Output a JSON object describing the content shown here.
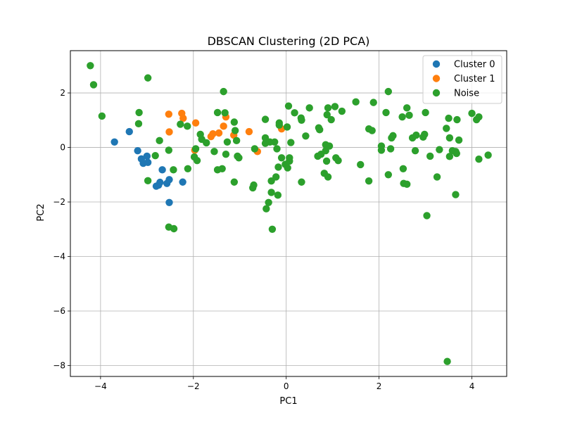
{
  "chart_data": {
    "type": "scatter",
    "title": "DBSCAN Clustering (2D PCA)",
    "xlabel": "PC1",
    "ylabel": "PC2",
    "xlim": [
      -4.65,
      4.75
    ],
    "ylim": [
      -8.4,
      3.55
    ],
    "xticks": [
      -4,
      -2,
      0,
      2,
      4
    ],
    "yticks": [
      -8,
      -6,
      -4,
      -2,
      0,
      2
    ],
    "grid": true,
    "legend_position": "top-right",
    "series": [
      {
        "name": "Cluster 0",
        "color": "#1f77b4",
        "points": [
          [
            -3.7,
            0.2
          ],
          [
            -3.38,
            0.58
          ],
          [
            -3.2,
            -0.12
          ],
          [
            -3.12,
            -0.42
          ],
          [
            -3.08,
            -0.58
          ],
          [
            -3.0,
            -0.32
          ],
          [
            -2.98,
            -0.55
          ],
          [
            -2.8,
            -1.42
          ],
          [
            -2.75,
            -1.38
          ],
          [
            -2.72,
            -1.28
          ],
          [
            -2.67,
            -0.82
          ],
          [
            -2.57,
            -1.32
          ],
          [
            -2.52,
            -1.18
          ],
          [
            -2.52,
            -2.02
          ],
          [
            -2.23,
            -1.27
          ]
        ]
      },
      {
        "name": "Cluster 1",
        "color": "#ff7f0e",
        "points": [
          [
            -2.53,
            1.22
          ],
          [
            -2.52,
            0.57
          ],
          [
            -2.25,
            1.25
          ],
          [
            -2.22,
            1.07
          ],
          [
            -1.95,
            0.9
          ],
          [
            -1.97,
            -0.1
          ],
          [
            -1.62,
            0.4
          ],
          [
            -1.58,
            0.5
          ],
          [
            -1.45,
            0.53
          ],
          [
            -1.35,
            0.78
          ],
          [
            -1.3,
            1.12
          ],
          [
            -1.13,
            0.45
          ],
          [
            -0.8,
            0.58
          ],
          [
            -0.62,
            -0.15
          ],
          [
            -0.1,
            0.68
          ]
        ]
      },
      {
        "name": "Noise",
        "color": "#2ca02c",
        "points": [
          [
            -4.22,
            3.0
          ],
          [
            -4.15,
            2.3
          ],
          [
            -3.97,
            1.15
          ],
          [
            -3.17,
            1.28
          ],
          [
            -3.18,
            0.87
          ],
          [
            -2.98,
            2.55
          ],
          [
            -2.98,
            -1.22
          ],
          [
            -2.82,
            -0.3
          ],
          [
            -2.73,
            0.25
          ],
          [
            -2.53,
            -0.1
          ],
          [
            -2.53,
            -2.92
          ],
          [
            -2.43,
            -0.82
          ],
          [
            -2.42,
            -2.98
          ],
          [
            -2.28,
            0.85
          ],
          [
            -2.13,
            0.78
          ],
          [
            -2.12,
            -0.78
          ],
          [
            -1.98,
            -0.35
          ],
          [
            -1.95,
            -0.05
          ],
          [
            -1.92,
            -0.48
          ],
          [
            -1.85,
            0.48
          ],
          [
            -1.82,
            0.3
          ],
          [
            -1.72,
            0.17
          ],
          [
            -1.55,
            -0.15
          ],
          [
            -1.48,
            1.28
          ],
          [
            -1.48,
            -0.82
          ],
          [
            -1.38,
            -0.78
          ],
          [
            -1.35,
            2.05
          ],
          [
            -1.32,
            1.27
          ],
          [
            -1.3,
            -0.25
          ],
          [
            -1.27,
            0.2
          ],
          [
            -1.12,
            0.93
          ],
          [
            -1.12,
            -1.27
          ],
          [
            -1.1,
            0.62
          ],
          [
            -1.07,
            0.25
          ],
          [
            -1.05,
            -0.32
          ],
          [
            -1.02,
            -0.38
          ],
          [
            -0.72,
            -1.48
          ],
          [
            -0.7,
            -1.38
          ],
          [
            -0.68,
            -0.05
          ],
          [
            -0.45,
            1.03
          ],
          [
            -0.45,
            0.35
          ],
          [
            -0.45,
            0.15
          ],
          [
            -0.43,
            -2.25
          ],
          [
            -0.38,
            -2.02
          ],
          [
            -0.35,
            0.2
          ],
          [
            -0.32,
            -1.65
          ],
          [
            -0.32,
            -1.23
          ],
          [
            -0.3,
            -3.0
          ],
          [
            -0.25,
            0.2
          ],
          [
            -0.22,
            -1.08
          ],
          [
            -0.2,
            -0.05
          ],
          [
            -0.18,
            -1.75
          ],
          [
            -0.17,
            -0.72
          ],
          [
            -0.15,
            0.9
          ],
          [
            -0.15,
            0.82
          ],
          [
            -0.1,
            -0.38
          ],
          [
            -0.02,
            -0.62
          ],
          [
            0.02,
            0.75
          ],
          [
            0.03,
            -0.75
          ],
          [
            0.05,
            1.52
          ],
          [
            0.07,
            -0.5
          ],
          [
            0.07,
            -0.38
          ],
          [
            0.1,
            0.18
          ],
          [
            0.18,
            1.27
          ],
          [
            0.32,
            1.08
          ],
          [
            0.33,
            1.0
          ],
          [
            0.33,
            -1.27
          ],
          [
            0.42,
            0.42
          ],
          [
            0.5,
            1.45
          ],
          [
            0.68,
            -0.32
          ],
          [
            0.7,
            0.72
          ],
          [
            0.72,
            0.65
          ],
          [
            0.75,
            -0.25
          ],
          [
            0.82,
            -0.95
          ],
          [
            0.85,
            0.1
          ],
          [
            0.85,
            -0.12
          ],
          [
            0.87,
            -0.5
          ],
          [
            0.88,
            1.2
          ],
          [
            0.9,
            -1.08
          ],
          [
            0.9,
            1.45
          ],
          [
            0.93,
            0.05
          ],
          [
            0.97,
            1.02
          ],
          [
            1.05,
            1.5
          ],
          [
            1.07,
            -0.38
          ],
          [
            1.12,
            -0.48
          ],
          [
            1.2,
            1.33
          ],
          [
            1.5,
            1.67
          ],
          [
            1.6,
            -0.63
          ],
          [
            1.78,
            0.68
          ],
          [
            1.78,
            -1.23
          ],
          [
            1.85,
            0.62
          ],
          [
            1.88,
            1.65
          ],
          [
            2.05,
            0.05
          ],
          [
            2.05,
            -0.1
          ],
          [
            2.15,
            1.28
          ],
          [
            2.2,
            2.05
          ],
          [
            2.2,
            -1.0
          ],
          [
            2.25,
            -0.05
          ],
          [
            2.27,
            0.35
          ],
          [
            2.3,
            0.43
          ],
          [
            2.5,
            1.12
          ],
          [
            2.52,
            -0.78
          ],
          [
            2.53,
            -1.32
          ],
          [
            2.6,
            1.45
          ],
          [
            2.6,
            -1.35
          ],
          [
            2.65,
            1.18
          ],
          [
            2.72,
            0.35
          ],
          [
            2.78,
            -0.12
          ],
          [
            2.8,
            0.45
          ],
          [
            2.95,
            0.38
          ],
          [
            2.98,
            0.48
          ],
          [
            3.0,
            1.28
          ],
          [
            3.03,
            -2.5
          ],
          [
            3.1,
            -0.32
          ],
          [
            3.25,
            -1.08
          ],
          [
            3.3,
            -0.08
          ],
          [
            3.45,
            0.7
          ],
          [
            3.47,
            -7.85
          ],
          [
            3.5,
            1.07
          ],
          [
            3.52,
            0.35
          ],
          [
            3.52,
            -0.33
          ],
          [
            3.58,
            -0.12
          ],
          [
            3.65,
            -1.73
          ],
          [
            3.65,
            -0.15
          ],
          [
            3.67,
            -0.22
          ],
          [
            3.68,
            1.02
          ],
          [
            3.72,
            0.27
          ],
          [
            4.0,
            1.25
          ],
          [
            4.1,
            1.02
          ],
          [
            4.15,
            1.12
          ],
          [
            4.15,
            -0.43
          ],
          [
            4.35,
            -0.28
          ]
        ]
      }
    ]
  }
}
